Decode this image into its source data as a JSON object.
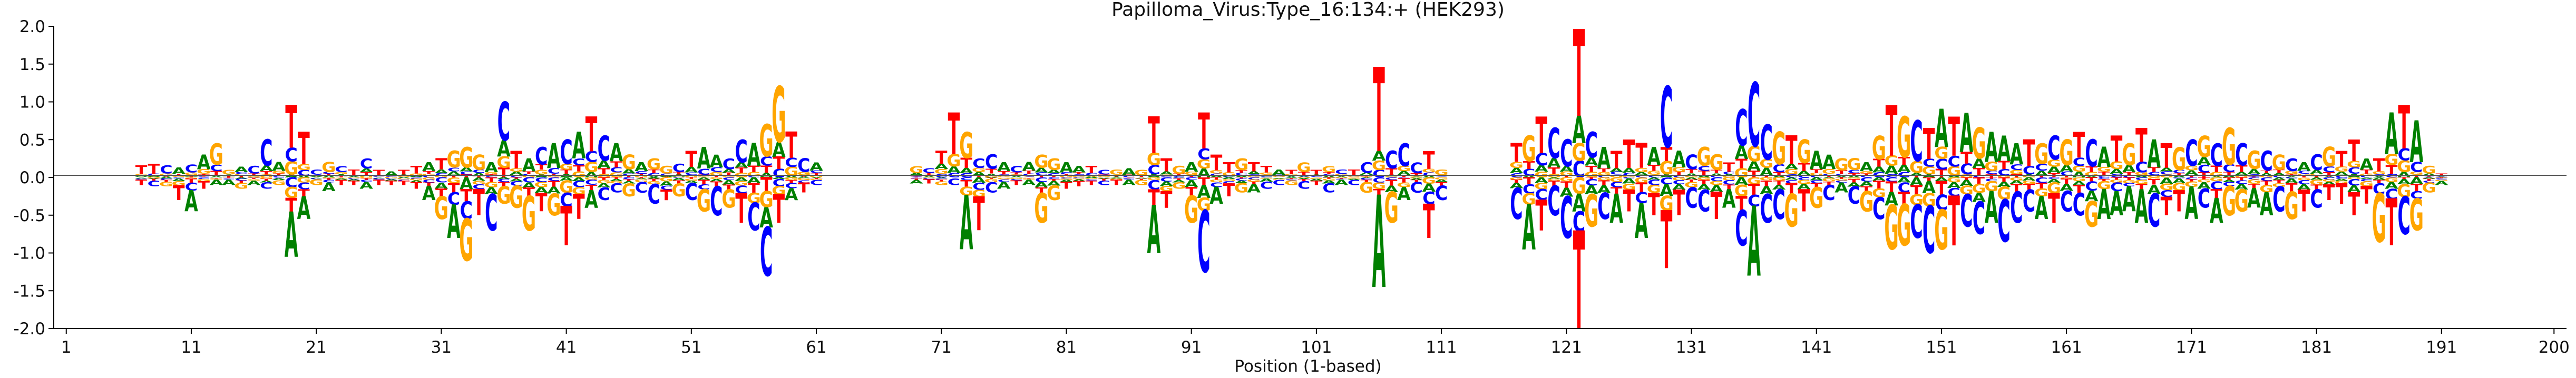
{
  "chart_data": {
    "type": "sequence-logo",
    "title": "Papilloma_Virus:Type_16:134:+  (HEK293)",
    "xlabel": "Position (1-based)",
    "ylabel": "",
    "xlim": [
      0,
      201
    ],
    "ylim": [
      -2.0,
      2.0
    ],
    "x_ticks": [
      1,
      11,
      21,
      31,
      41,
      51,
      61,
      71,
      81,
      91,
      101,
      111,
      121,
      131,
      141,
      151,
      161,
      171,
      181,
      191,
      200
    ],
    "y_ticks": [
      "-2.0",
      "-1.5",
      "-1.0",
      "-0.5",
      "0.0",
      "0.5",
      "1.0",
      "1.5",
      "2.0"
    ],
    "y_tick_values": [
      -2.0,
      -1.5,
      -1.0,
      -0.5,
      0.0,
      0.5,
      1.0,
      1.5,
      2.0
    ],
    "colors": {
      "A": "#008000",
      "C": "#0000ff",
      "G": "#ffa500",
      "T": "#ff0000"
    },
    "zero_line": true,
    "segments": [
      {
        "start": 7,
        "end": 61,
        "top": [
          0.16,
          0.18,
          0.16,
          0.13,
          0.17,
          0.3,
          0.45,
          0.1,
          0.14,
          0.15,
          0.5,
          0.2,
          0.95,
          0.6,
          0.1,
          0.2,
          0.15,
          0.1,
          0.25,
          0.1,
          0.08,
          0.1,
          0.15,
          0.2,
          0.25,
          0.35,
          0.4,
          0.3,
          0.2,
          1.0,
          0.35,
          0.25,
          0.4,
          0.45,
          0.5,
          0.6,
          0.8,
          0.55,
          0.45,
          0.3,
          0.2,
          0.25,
          0.15,
          0.18,
          0.35,
          0.4,
          0.3,
          0.25,
          0.5,
          0.45,
          0.7,
          1.2,
          0.6,
          0.25,
          0.2
        ],
        "bottom": [
          0.1,
          0.12,
          0.12,
          0.3,
          0.45,
          0.15,
          0.1,
          0.1,
          0.15,
          0.1,
          0.15,
          0.1,
          1.05,
          0.55,
          0.1,
          0.18,
          0.1,
          0.1,
          0.15,
          0.1,
          0.1,
          0.1,
          0.15,
          0.3,
          0.55,
          0.8,
          1.1,
          0.5,
          0.7,
          0.35,
          0.4,
          0.7,
          0.45,
          0.5,
          0.9,
          0.55,
          0.4,
          0.3,
          0.2,
          0.25,
          0.2,
          0.35,
          0.3,
          0.25,
          0.3,
          0.45,
          0.5,
          0.4,
          0.6,
          0.7,
          1.3,
          0.6,
          0.3,
          0.2,
          0.1
        ]
      },
      {
        "start": 69,
        "end": 111,
        "top": [
          0.15,
          0.12,
          0.35,
          0.85,
          0.6,
          0.25,
          0.3,
          0.2,
          0.15,
          0.2,
          0.3,
          0.25,
          0.2,
          0.15,
          0.15,
          0.1,
          0.1,
          0.12,
          0.1,
          0.8,
          0.25,
          0.15,
          0.2,
          0.85,
          0.3,
          0.2,
          0.25,
          0.2,
          0.15,
          0.1,
          0.1,
          0.2,
          0.1,
          0.15,
          0.1,
          0.1,
          0.2,
          1.45,
          0.35,
          0.45,
          0.2,
          0.35,
          0.1
        ],
        "bottom": [
          0.08,
          0.08,
          0.1,
          0.1,
          0.95,
          0.7,
          0.2,
          0.15,
          0.1,
          0.1,
          0.6,
          0.3,
          0.15,
          0.12,
          0.1,
          0.1,
          0.1,
          0.1,
          0.1,
          1.0,
          0.4,
          0.15,
          0.6,
          1.25,
          0.35,
          0.25,
          0.2,
          0.2,
          0.15,
          0.1,
          0.1,
          0.15,
          0.1,
          0.2,
          0.1,
          0.1,
          0.2,
          1.45,
          0.6,
          0.3,
          0.2,
          0.8,
          0.3
        ]
      },
      {
        "start": 117,
        "end": 191,
        "top": [
          0.45,
          0.55,
          0.8,
          0.65,
          0.5,
          1.95,
          0.6,
          0.4,
          0.35,
          0.5,
          0.45,
          0.4,
          1.2,
          0.35,
          0.3,
          0.4,
          0.3,
          0.2,
          0.9,
          1.25,
          0.7,
          0.6,
          0.55,
          0.5,
          0.35,
          0.3,
          0.25,
          0.25,
          0.2,
          0.55,
          0.95,
          0.8,
          0.75,
          0.65,
          0.9,
          0.8,
          0.85,
          0.65,
          0.6,
          0.55,
          0.45,
          0.5,
          0.45,
          0.55,
          0.5,
          0.6,
          0.5,
          0.4,
          0.55,
          0.45,
          0.65,
          0.5,
          0.45,
          0.4,
          0.5,
          0.55,
          0.45,
          0.65,
          0.45,
          0.35,
          0.35,
          0.3,
          0.25,
          0.2,
          0.3,
          0.4,
          0.35,
          0.5,
          0.25,
          0.25,
          0.85,
          0.95,
          0.75,
          0.15,
          0.05
        ],
        "bottom": [
          0.55,
          0.95,
          0.7,
          0.5,
          0.8,
          2.0,
          0.65,
          0.55,
          0.6,
          0.45,
          0.8,
          0.5,
          1.2,
          0.5,
          0.4,
          0.45,
          0.55,
          0.4,
          0.9,
          1.3,
          0.6,
          0.55,
          0.65,
          0.45,
          0.4,
          0.3,
          0.2,
          0.35,
          0.45,
          0.55,
          0.95,
          0.9,
          0.8,
          1.0,
          0.95,
          0.9,
          0.65,
          0.75,
          0.6,
          0.85,
          0.6,
          0.45,
          0.55,
          0.6,
          0.45,
          0.5,
          0.65,
          0.55,
          0.5,
          0.45,
          0.6,
          0.65,
          0.5,
          0.45,
          0.55,
          0.4,
          0.6,
          0.5,
          0.45,
          0.4,
          0.5,
          0.45,
          0.55,
          0.45,
          0.4,
          0.3,
          0.35,
          0.5,
          0.35,
          0.85,
          0.9,
          0.75,
          0.7,
          0.2,
          0.1
        ]
      }
    ]
  }
}
